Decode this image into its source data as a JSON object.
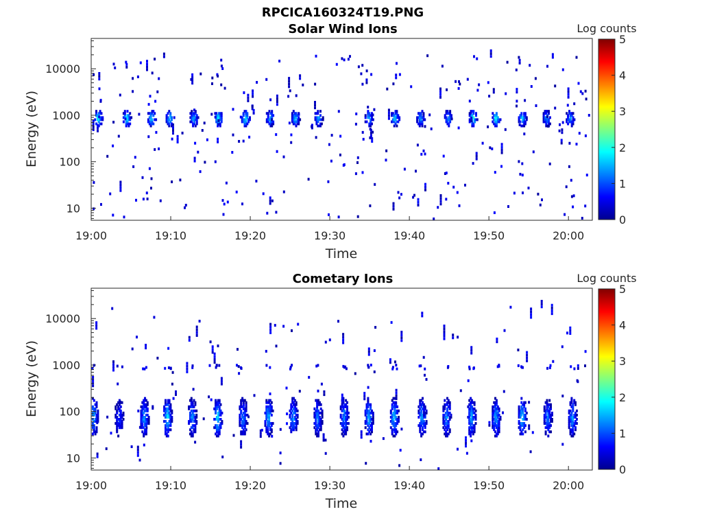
{
  "figure": {
    "title": "RPCICA160324T19.PNG"
  },
  "chart_data": [
    {
      "type": "heatmap",
      "title": "Solar Wind Ions",
      "xlabel": "Time",
      "ylabel": "Energy (eV)",
      "x_ticks": [
        "19:00",
        "19:10",
        "19:20",
        "19:30",
        "19:40",
        "19:50",
        "20:00"
      ],
      "x_range_minutes": [
        0,
        63
      ],
      "y_scale": "log",
      "y_ticks": [
        "10",
        "100",
        "1000",
        "10000"
      ],
      "ylim": [
        5.5,
        45000
      ],
      "colorbar": {
        "label": "Log counts",
        "ticks": [
          "0",
          "1",
          "2",
          "3",
          "4",
          "5"
        ],
        "range": [
          0,
          5
        ],
        "colormap": "jet"
      },
      "bursts": {
        "description_energy_band_eV": [
          550,
          1300
        ],
        "peak_energy_eV": 800,
        "times_min": [
          0.8,
          4.4,
          7.5,
          9.8,
          12.8,
          15.9,
          19.3,
          22.4,
          25.6,
          28.5,
          34.8,
          38.1,
          41.3,
          44.8,
          47.9,
          50.8,
          54.1,
          57.2,
          60.1
        ],
        "peak_log_counts": [
          2.2,
          2.0,
          1.8,
          1.9,
          1.6,
          2.0,
          1.9,
          1.5,
          1.7,
          1.5,
          1.6,
          1.8,
          1.4,
          1.5,
          2.1,
          2.0,
          1.7,
          1.4,
          1.5
        ]
      }
    },
    {
      "type": "heatmap",
      "title": "Cometary Ions",
      "xlabel": "Time",
      "ylabel": "Energy (eV)",
      "x_ticks": [
        "19:00",
        "19:10",
        "19:20",
        "19:30",
        "19:40",
        "19:50",
        "20:00"
      ],
      "x_range_minutes": [
        0,
        63
      ],
      "y_scale": "log",
      "y_ticks": [
        "10",
        "100",
        "1000",
        "10000"
      ],
      "ylim": [
        5.5,
        45000
      ],
      "colorbar": {
        "label": "Log counts",
        "ticks": [
          "0",
          "1",
          "2",
          "3",
          "4",
          "5"
        ],
        "range": [
          0,
          5
        ],
        "colormap": "jet"
      },
      "bursts": {
        "description_energy_band_eV": [
          25,
          180
        ],
        "peak_energy_eV": 70,
        "times_min": [
          0.2,
          3.4,
          6.6,
          9.5,
          12.6,
          15.8,
          19.0,
          22.2,
          25.3,
          28.4,
          31.7,
          34.8,
          38.0,
          41.5,
          44.6,
          47.7,
          50.8,
          54.1,
          57.3,
          60.4
        ],
        "peak_log_counts": [
          1.6,
          0.9,
          1.5,
          1.9,
          1.4,
          1.8,
          1.3,
          1.6,
          1.5,
          1.3,
          1.4,
          1.6,
          1.7,
          1.5,
          1.4,
          1.5,
          1.5,
          1.8,
          1.3,
          1.4
        ]
      },
      "secondary_band_eV": 850
    }
  ]
}
